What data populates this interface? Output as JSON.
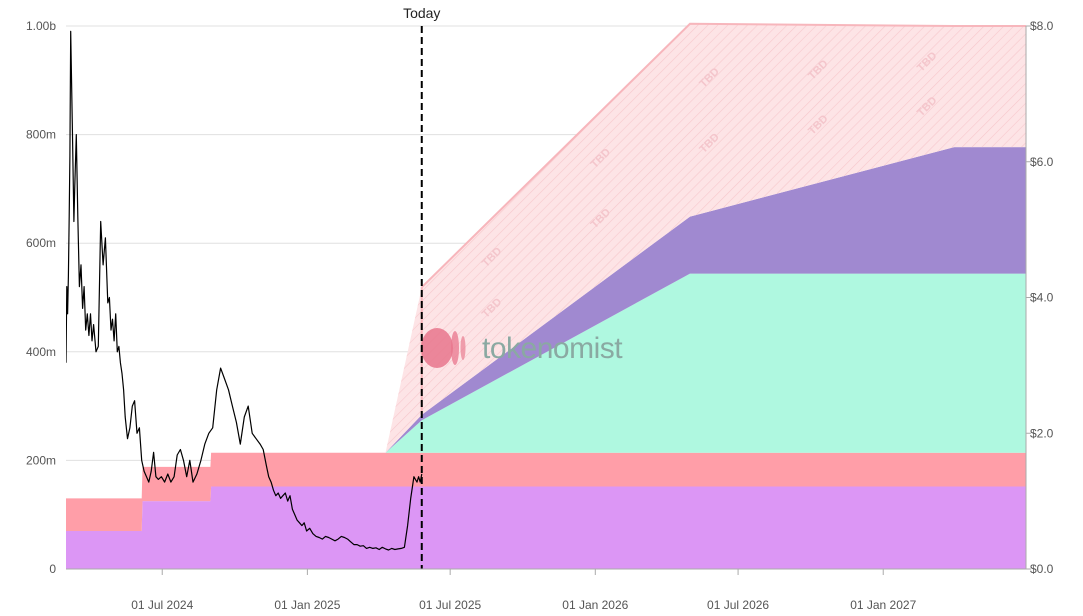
{
  "chart_data": {
    "type": "area",
    "today_label": "Today",
    "watermark": "tokenomist",
    "tbd_label": "TBD",
    "colors": {
      "band1": "#dc96f5",
      "band2": "#ff9ea8",
      "band3": "#aff8e0",
      "band4": "#a089d0",
      "tbd_fill": "#fde4e6",
      "tbd_line": "#f7b6bc",
      "price": "#000000",
      "grid": "#e0e0e0",
      "today_line": "#000000",
      "logo": "#e8768c"
    },
    "x_ticks": [
      "01 Jul 2024",
      "01 Jan 2025",
      "01 Jul 2025",
      "01 Jan 2026",
      "01 Jul 2026",
      "01 Jan 2027"
    ],
    "y_left_ticks": [
      "0",
      "200m",
      "400m",
      "600m",
      "800m",
      "1.00b"
    ],
    "y_right_ticks": [
      "$0.0",
      "$2.0",
      "$4.0",
      "$6.0",
      "$8.0"
    ],
    "x_range": [
      "2024-03-01",
      "2027-07-01"
    ],
    "y_left_range": [
      0,
      1000
    ],
    "y_left_unit": "m",
    "y_right_range": [
      0,
      8
    ],
    "today": "2025-05-26",
    "unlock_schedule": {
      "dates": [
        "2024-03-01",
        "2024-06-05",
        "2024-06-06",
        "2024-08-31",
        "2024-09-01",
        "2025-04-10",
        "2025-05-26",
        "2026-05-01",
        "2027-04-01",
        "2027-07-01"
      ],
      "series": [
        {
          "values": [
            70,
            70,
            125,
            125,
            152,
            152,
            152,
            152,
            152,
            152
          ]
        },
        {
          "values": [
            60,
            60,
            63,
            63,
            62,
            62,
            62,
            62,
            62,
            62
          ]
        },
        {
          "values": [
            0,
            0,
            0,
            0,
            0,
            0,
            60,
            330,
            330,
            330
          ]
        },
        {
          "values": [
            0,
            0,
            0,
            0,
            0,
            0,
            10,
            105,
            233,
            233
          ]
        },
        {
          "values": [
            0,
            0,
            0,
            0,
            0,
            0,
            235,
            355,
            223,
            223
          ]
        }
      ]
    },
    "price_series": {
      "dates": [
        "2024-03-01",
        "2024-03-02",
        "2024-03-03",
        "2024-03-04",
        "2024-03-05",
        "2024-03-06",
        "2024-03-07",
        "2024-03-09",
        "2024-03-11",
        "2024-03-12",
        "2024-03-14",
        "2024-03-16",
        "2024-03-18",
        "2024-03-20",
        "2024-03-22",
        "2024-03-24",
        "2024-03-26",
        "2024-03-28",
        "2024-03-30",
        "2024-04-01",
        "2024-04-03",
        "2024-04-05",
        "2024-04-08",
        "2024-04-11",
        "2024-04-14",
        "2024-04-17",
        "2024-04-20",
        "2024-04-23",
        "2024-04-25",
        "2024-04-27",
        "2024-04-29",
        "2024-05-01",
        "2024-05-03",
        "2024-05-05",
        "2024-05-07",
        "2024-05-09",
        "2024-05-11",
        "2024-05-13",
        "2024-05-15",
        "2024-05-18",
        "2024-05-21",
        "2024-05-24",
        "2024-05-27",
        "2024-05-30",
        "2024-06-02",
        "2024-06-05",
        "2024-06-08",
        "2024-06-11",
        "2024-06-14",
        "2024-06-17",
        "2024-06-20",
        "2024-06-23",
        "2024-06-26",
        "2024-06-30",
        "2024-07-04",
        "2024-07-08",
        "2024-07-12",
        "2024-07-16",
        "2024-07-20",
        "2024-07-24",
        "2024-07-28",
        "2024-08-01",
        "2024-08-05",
        "2024-08-09",
        "2024-08-14",
        "2024-08-19",
        "2024-08-24",
        "2024-08-29",
        "2024-09-03",
        "2024-09-08",
        "2024-09-13",
        "2024-09-18",
        "2024-09-23",
        "2024-09-28",
        "2024-10-03",
        "2024-10-08",
        "2024-10-13",
        "2024-10-18",
        "2024-10-23",
        "2024-10-28",
        "2024-11-02",
        "2024-11-06",
        "2024-11-10",
        "2024-11-13",
        "2024-11-16",
        "2024-11-19",
        "2024-11-22",
        "2024-11-25",
        "2024-11-28",
        "2024-12-01",
        "2024-12-04",
        "2024-12-07",
        "2024-12-10",
        "2024-12-13",
        "2024-12-16",
        "2024-12-19",
        "2024-12-22",
        "2024-12-25",
        "2024-12-28",
        "2024-12-31",
        "2025-01-04",
        "2025-01-08",
        "2025-01-12",
        "2025-01-16",
        "2025-01-20",
        "2025-01-24",
        "2025-01-28",
        "2025-02-01",
        "2025-02-05",
        "2025-02-09",
        "2025-02-13",
        "2025-02-17",
        "2025-02-21",
        "2025-02-25",
        "2025-03-01",
        "2025-03-05",
        "2025-03-09",
        "2025-03-13",
        "2025-03-17",
        "2025-03-21",
        "2025-03-25",
        "2025-03-29",
        "2025-04-02",
        "2025-04-06",
        "2025-04-10",
        "2025-04-14",
        "2025-04-18",
        "2025-04-22",
        "2025-04-26",
        "2025-04-30",
        "2025-05-04",
        "2025-05-08",
        "2025-05-12",
        "2025-05-14",
        "2025-05-16",
        "2025-05-18",
        "2025-05-20",
        "2025-05-22",
        "2025-05-24",
        "2025-05-26"
      ],
      "values": [
        380,
        520,
        470,
        540,
        650,
        760,
        990,
        820,
        640,
        700,
        800,
        650,
        520,
        560,
        480,
        520,
        440,
        470,
        430,
        470,
        420,
        450,
        400,
        410,
        640,
        560,
        610,
        490,
        500,
        440,
        460,
        420,
        470,
        400,
        410,
        380,
        360,
        330,
        280,
        240,
        260,
        300,
        310,
        250,
        260,
        200,
        180,
        170,
        160,
        180,
        215,
        170,
        165,
        170,
        160,
        175,
        160,
        170,
        210,
        220,
        200,
        170,
        200,
        160,
        175,
        200,
        230,
        250,
        260,
        330,
        370,
        350,
        330,
        300,
        270,
        230,
        280,
        300,
        250,
        240,
        230,
        220,
        190,
        170,
        160,
        145,
        135,
        140,
        130,
        135,
        140,
        125,
        135,
        110,
        100,
        90,
        85,
        80,
        85,
        70,
        75,
        65,
        60,
        58,
        55,
        60,
        58,
        55,
        52,
        55,
        60,
        58,
        55,
        50,
        45,
        45,
        42,
        43,
        38,
        40,
        38,
        39,
        36,
        40,
        37,
        35,
        38,
        36,
        37,
        38,
        40,
        80,
        130,
        150,
        170,
        165,
        160,
        170,
        160,
        175
      ]
    }
  }
}
